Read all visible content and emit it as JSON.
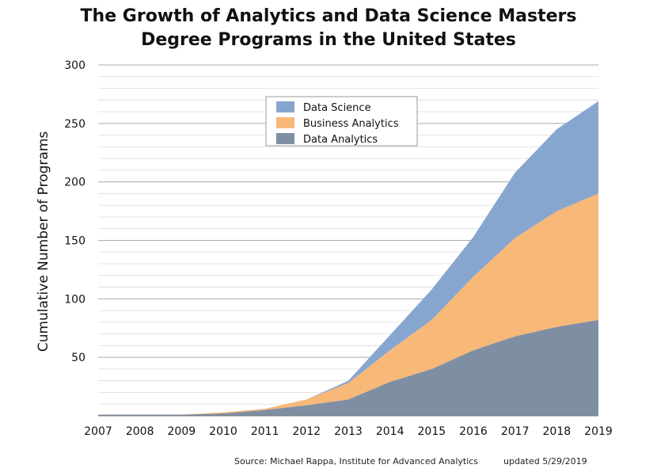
{
  "chart_data": {
    "type": "area",
    "stacked": true,
    "title": [
      "The Growth of Analytics and Data Science Masters",
      "Degree Programs in the United States"
    ],
    "ylabel": "Cumulative Number of Programs",
    "xlabel": "",
    "x": [
      "2007",
      "2008",
      "2009",
      "2010",
      "2011",
      "2012",
      "2013",
      "2014",
      "2015",
      "2016",
      "2017",
      "2018",
      "2019"
    ],
    "ylim": [
      0,
      300
    ],
    "yticks": [
      50,
      100,
      150,
      200,
      250,
      300
    ],
    "grid": true,
    "legend_position": "top-center",
    "series": [
      {
        "name": "Data Analytics",
        "color": "#7f8fa3",
        "values": [
          1,
          1,
          1,
          2,
          5,
          9,
          14,
          29,
          40,
          56,
          68,
          76,
          82
        ]
      },
      {
        "name": "Business Analytics",
        "color": "#f7b878",
        "values": [
          0,
          0,
          0,
          1,
          1,
          5,
          14,
          27,
          42,
          63,
          84,
          99,
          108
        ]
      },
      {
        "name": "Data Science",
        "color": "#87a6cf",
        "values": [
          0,
          0,
          0,
          0,
          0,
          0,
          2,
          13,
          26,
          34,
          56,
          70,
          79
        ]
      }
    ],
    "legend_order": [
      "Data Science",
      "Business Analytics",
      "Data Analytics"
    ]
  },
  "footer": {
    "source": "Source: Michael Rappa, Institute for Advanced Analytics",
    "updated": "updated 5/29/2019"
  }
}
